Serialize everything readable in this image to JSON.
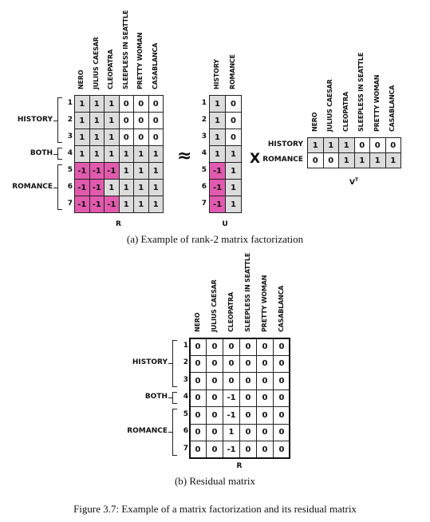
{
  "movies": [
    "NERO",
    "JULIUS CAESAR",
    "CLEOPATRA",
    "SLEEPLESS IN SEATTLE",
    "PRETTY WOMAN",
    "CASABLANCA"
  ],
  "row_indices": [
    "1",
    "2",
    "3",
    "4",
    "5",
    "6",
    "7"
  ],
  "groups": {
    "history": "HISTORY",
    "both": "BOTH",
    "romance": "ROMANCE"
  },
  "factor_labels": [
    "HISTORY",
    "ROMANCE"
  ],
  "matrix_names": {
    "R": "R",
    "U": "U",
    "V": "V",
    "V_sup": "T"
  },
  "operators": {
    "approx": "≈",
    "times": "X"
  },
  "colors": {
    "gray": "#dcdcdc",
    "pink": "#e15aae",
    "white": "#ffffff"
  },
  "R": [
    [
      "1",
      "1",
      "1",
      "0",
      "0",
      "0"
    ],
    [
      "1",
      "1",
      "1",
      "0",
      "0",
      "0"
    ],
    [
      "1",
      "1",
      "1",
      "0",
      "0",
      "0"
    ],
    [
      "1",
      "1",
      "1",
      "1",
      "1",
      "1"
    ],
    [
      "-1",
      "-1",
      "-1",
      "1",
      "1",
      "1"
    ],
    [
      "-1",
      "-1",
      "1",
      "1",
      "1",
      "1"
    ],
    [
      "-1",
      "-1",
      "-1",
      "1",
      "1",
      "1"
    ]
  ],
  "R_fill": [
    [
      "g",
      "g",
      "g",
      "w",
      "w",
      "w"
    ],
    [
      "g",
      "g",
      "g",
      "w",
      "w",
      "w"
    ],
    [
      "g",
      "g",
      "g",
      "w",
      "w",
      "w"
    ],
    [
      "g",
      "g",
      "g",
      "g",
      "g",
      "g"
    ],
    [
      "p",
      "p",
      "p",
      "g",
      "g",
      "g"
    ],
    [
      "p",
      "p",
      "g",
      "g",
      "g",
      "g"
    ],
    [
      "p",
      "p",
      "p",
      "g",
      "g",
      "g"
    ]
  ],
  "U": [
    [
      "1",
      "0"
    ],
    [
      "1",
      "0"
    ],
    [
      "1",
      "0"
    ],
    [
      "1",
      "1"
    ],
    [
      "-1",
      "1"
    ],
    [
      "-1",
      "1"
    ],
    [
      "-1",
      "1"
    ]
  ],
  "U_fill": [
    [
      "g",
      "w"
    ],
    [
      "g",
      "w"
    ],
    [
      "g",
      "w"
    ],
    [
      "g",
      "g"
    ],
    [
      "p",
      "g"
    ],
    [
      "p",
      "g"
    ],
    [
      "p",
      "g"
    ]
  ],
  "VT": [
    [
      "1",
      "1",
      "1",
      "0",
      "0",
      "0"
    ],
    [
      "0",
      "0",
      "1",
      "1",
      "1",
      "1"
    ]
  ],
  "VT_fill": [
    [
      "g",
      "g",
      "g",
      "w",
      "w",
      "w"
    ],
    [
      "w",
      "w",
      "g",
      "g",
      "g",
      "g"
    ]
  ],
  "Residual": [
    [
      "0",
      "0",
      "0",
      "0",
      "0",
      "0"
    ],
    [
      "0",
      "0",
      "0",
      "0",
      "0",
      "0"
    ],
    [
      "0",
      "0",
      "0",
      "0",
      "0",
      "0"
    ],
    [
      "0",
      "0",
      "-1",
      "0",
      "0",
      "0"
    ],
    [
      "0",
      "0",
      "-1",
      "0",
      "0",
      "0"
    ],
    [
      "0",
      "0",
      "1",
      "0",
      "0",
      "0"
    ],
    [
      "0",
      "0",
      "-1",
      "0",
      "0",
      "0"
    ]
  ],
  "captions": {
    "a": "(a) Example of rank-2 matrix factorization",
    "b": "(b) Residual matrix",
    "figure": "Figure 3.7: Example of a matrix factorization and its residual matrix"
  }
}
